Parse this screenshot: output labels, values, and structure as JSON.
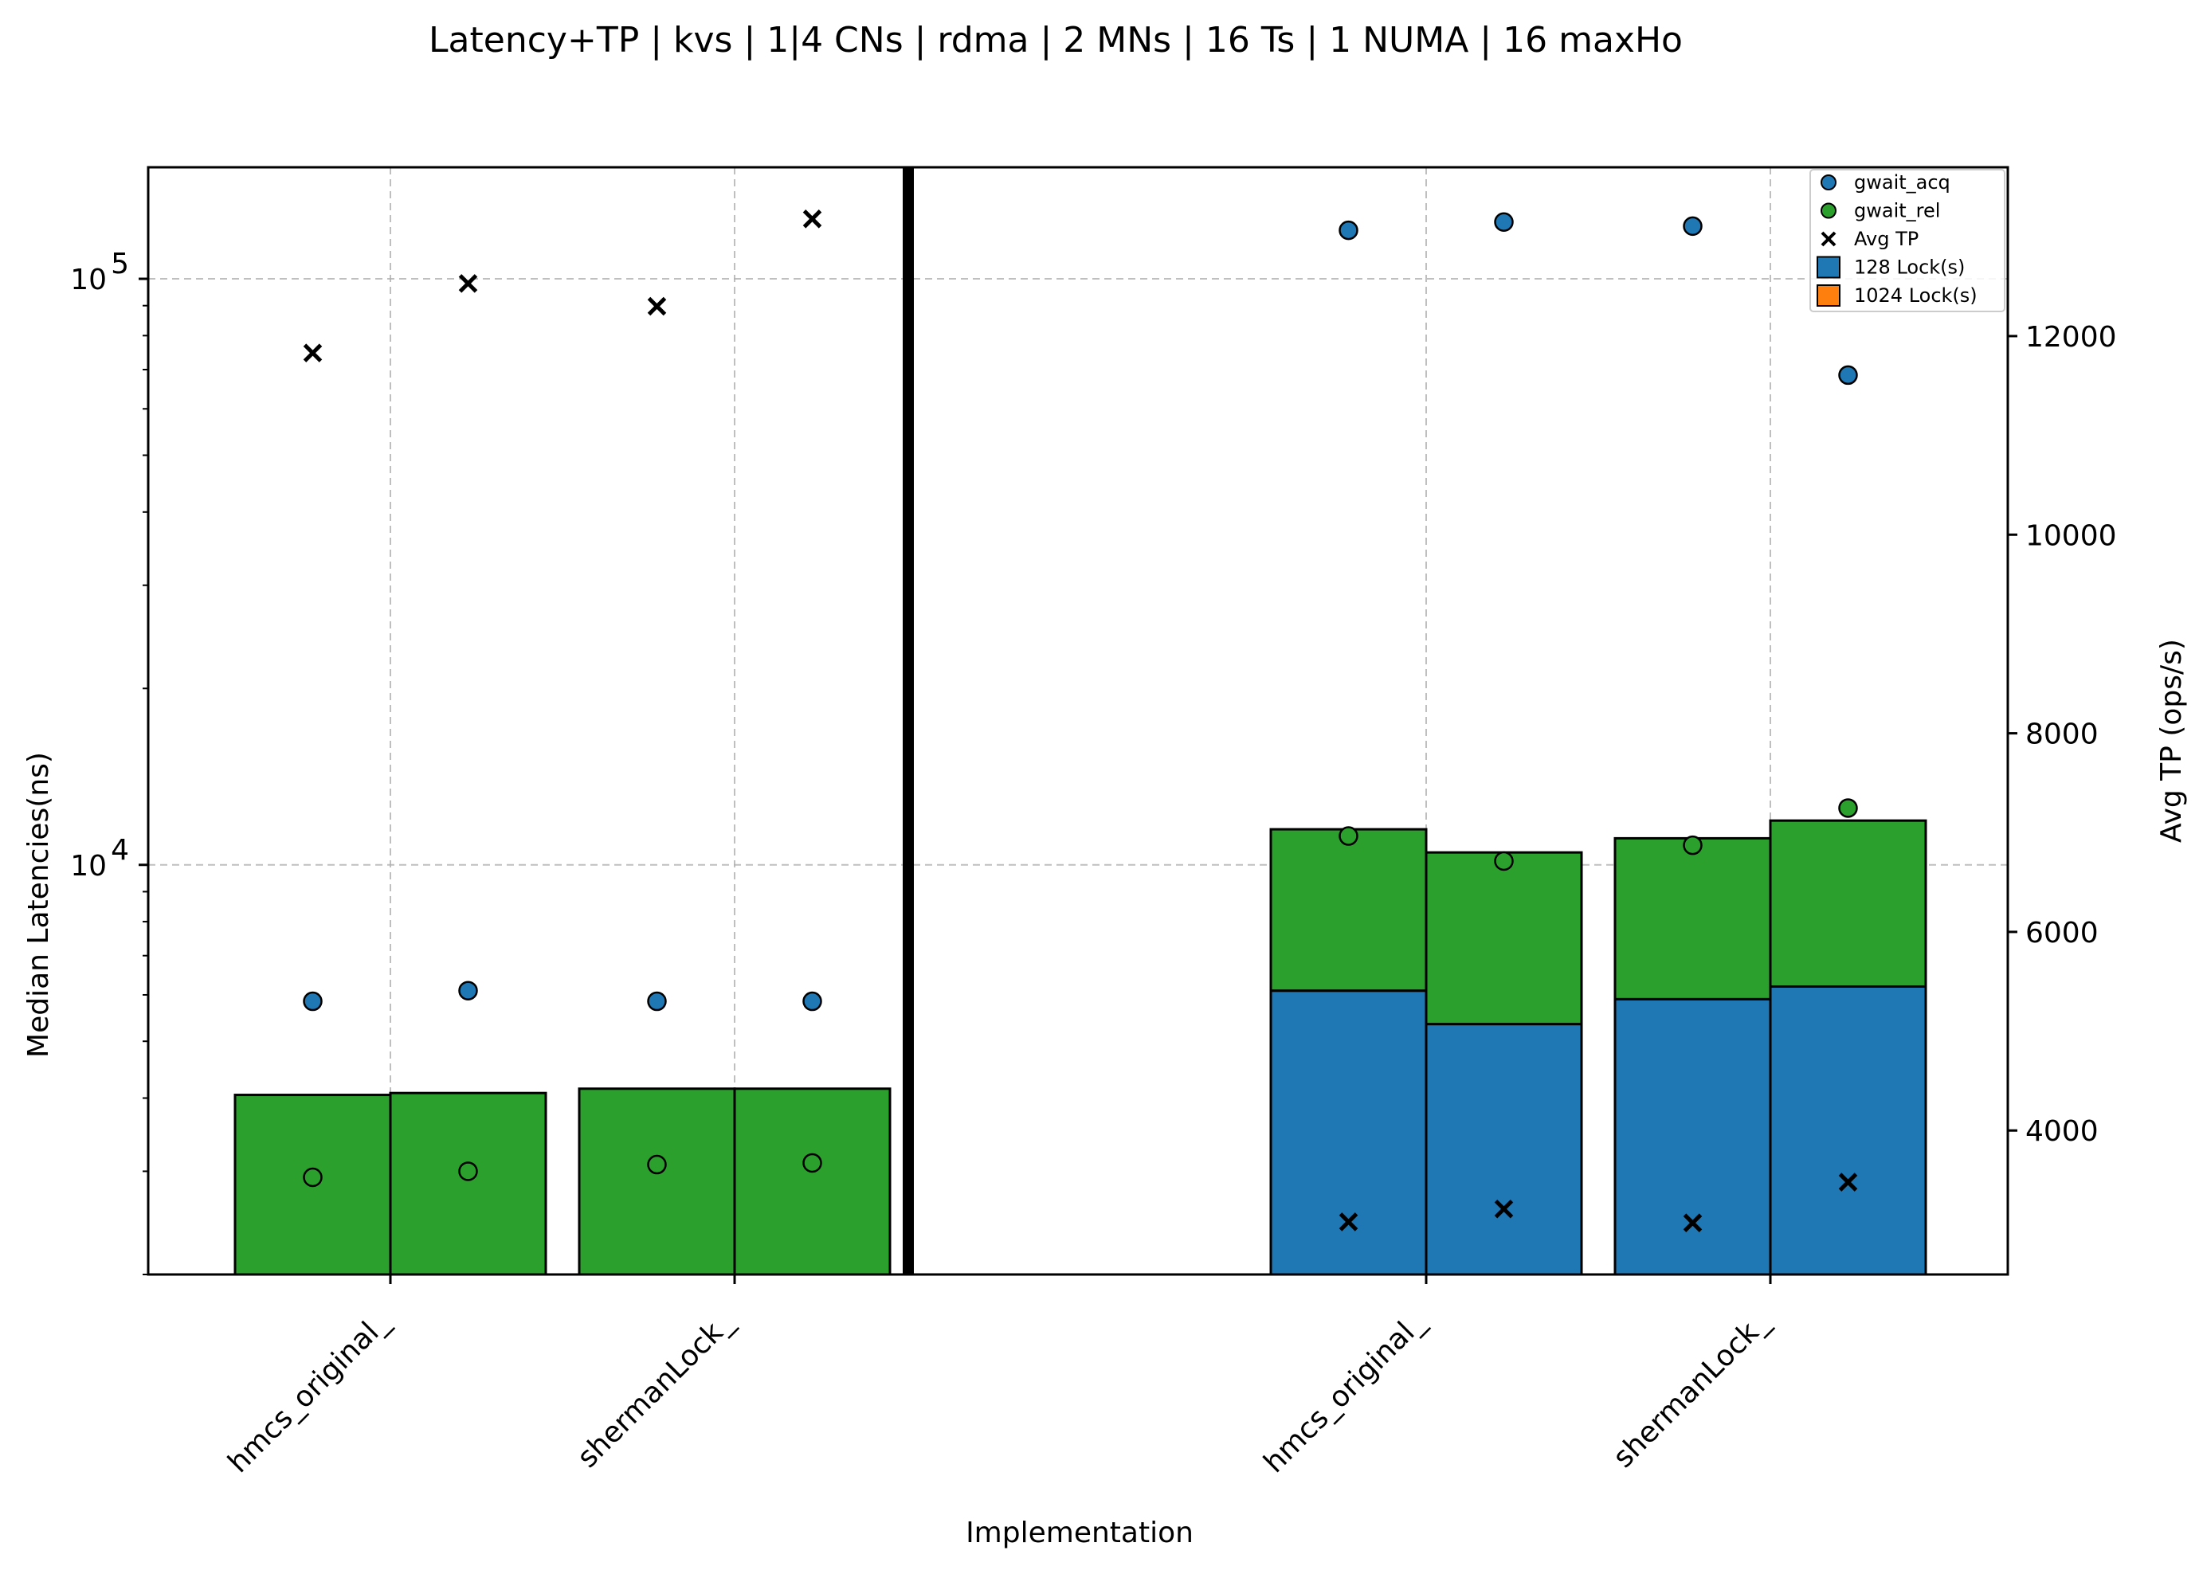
{
  "chart_data": {
    "type": "bar",
    "title": "Latency+TP | kvs | 1|4 CNs | rdma | 2 MNs | 16 Ts | 1 NUMA | 16 maxHo",
    "xlabel": "Implementation",
    "ylabel": "Median Latencies(ns)",
    "y2label": "Avg TP (ops/s)",
    "yscale": "log",
    "ylim": [
      2000,
      155000
    ],
    "y2lim": [
      2550,
      13700
    ],
    "y_ticks": [
      {
        "value": 10000,
        "base": "10",
        "exp": "4"
      },
      {
        "value": 100000,
        "base": "10",
        "exp": "5"
      }
    ],
    "y2_ticks": [
      4000,
      6000,
      8000,
      10000,
      12000
    ],
    "grid": true,
    "legend_placement": "top-right",
    "colors": {
      "gwait_acq": "#1f77b4",
      "gwait_rel": "#2ca02c",
      "lock_128": "#1f77b4",
      "lock_1024": "#ff7f0e",
      "avg_tp": "#000000",
      "divider": "#000000"
    },
    "legend": [
      {
        "label": "gwait_acq",
        "kind": "circle",
        "color": "#1f77b4"
      },
      {
        "label": "gwait_rel",
        "kind": "circle",
        "color": "#2ca02c"
      },
      {
        "label": "Avg TP",
        "kind": "cross",
        "color": "#000000"
      },
      {
        "label": "128 Lock(s)",
        "kind": "square",
        "color": "#1f77b4"
      },
      {
        "label": "1024 Lock(s)",
        "kind": "square",
        "color": "#ff7f0e"
      }
    ],
    "groups": [
      {
        "label": "hmcs_original_",
        "panel": "left",
        "bars": [
          {
            "acq_height": 0,
            "total": 4050,
            "gwait_acq": 5850,
            "gwait_rel": 2930,
            "avg_tp": 11830
          },
          {
            "acq_height": 0,
            "total": 4080,
            "gwait_acq": 6100,
            "gwait_rel": 3000,
            "avg_tp": 12530
          }
        ]
      },
      {
        "label": "shermanLock_",
        "panel": "left",
        "bars": [
          {
            "acq_height": 0,
            "total": 4150,
            "gwait_acq": 5850,
            "gwait_rel": 3080,
            "avg_tp": 12300
          },
          {
            "acq_height": 0,
            "total": 4150,
            "gwait_acq": 5850,
            "gwait_rel": 3100,
            "avg_tp": 13180
          }
        ]
      },
      {
        "label": "hmcs_original_",
        "panel": "right",
        "bars": [
          {
            "acq_height": 6100,
            "total": 11500,
            "gwait_acq": 121000,
            "gwait_rel": 11200,
            "avg_tp": 3080
          },
          {
            "acq_height": 5350,
            "total": 10500,
            "gwait_acq": 125000,
            "gwait_rel": 10150,
            "avg_tp": 3210
          }
        ]
      },
      {
        "label": "shermanLock_",
        "panel": "right",
        "bars": [
          {
            "acq_height": 5900,
            "total": 11100,
            "gwait_acq": 123000,
            "gwait_rel": 10800,
            "avg_tp": 3070
          },
          {
            "acq_height": 6200,
            "total": 11900,
            "gwait_acq": 68500,
            "gwait_rel": 12500,
            "avg_tp": 3480
          }
        ]
      }
    ]
  }
}
